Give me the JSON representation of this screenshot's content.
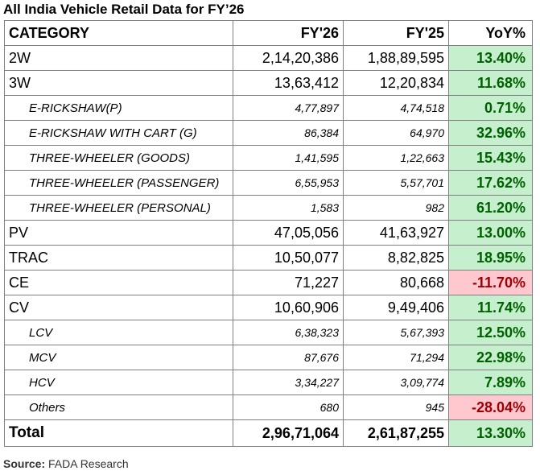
{
  "title": "All India Vehicle Retail Data for FY’26",
  "headers": {
    "category": "CATEGORY",
    "fy26": "FY'26",
    "fy25": "FY'25",
    "yoy": "YoY%"
  },
  "rows": [
    {
      "category": "2W",
      "fy26": "2,14,20,386",
      "fy25": "1,88,89,595",
      "yoy": "13.40%",
      "level": "main",
      "trend": "positive"
    },
    {
      "category": "3W",
      "fy26": "13,63,412",
      "fy25": "12,20,834",
      "yoy": "11.68%",
      "level": "main",
      "trend": "positive"
    },
    {
      "category": "E-RICKSHAW(P)",
      "fy26": "4,77,897",
      "fy25": "4,74,518",
      "yoy": "0.71%",
      "level": "sub",
      "trend": "positive"
    },
    {
      "category": "E-RICKSHAW WITH CART (G)",
      "fy26": "86,384",
      "fy25": "64,970",
      "yoy": "32.96%",
      "level": "sub",
      "trend": "positive"
    },
    {
      "category": "THREE-WHEELER (GOODS)",
      "fy26": "1,41,595",
      "fy25": "1,22,663",
      "yoy": "15.43%",
      "level": "sub",
      "trend": "positive"
    },
    {
      "category": "THREE-WHEELER (PASSENGER)",
      "fy26": "6,55,953",
      "fy25": "5,57,701",
      "yoy": "17.62%",
      "level": "sub",
      "trend": "positive"
    },
    {
      "category": "THREE-WHEELER (PERSONAL)",
      "fy26": "1,583",
      "fy25": "982",
      "yoy": "61.20%",
      "level": "sub",
      "trend": "positive"
    },
    {
      "category": "PV",
      "fy26": "47,05,056",
      "fy25": "41,63,927",
      "yoy": "13.00%",
      "level": "main",
      "trend": "positive"
    },
    {
      "category": "TRAC",
      "fy26": "10,50,077",
      "fy25": "8,82,825",
      "yoy": "18.95%",
      "level": "main",
      "trend": "positive"
    },
    {
      "category": "CE",
      "fy26": "71,227",
      "fy25": "80,668",
      "yoy": "-11.70%",
      "level": "main",
      "trend": "negative"
    },
    {
      "category": "CV",
      "fy26": "10,60,906",
      "fy25": "9,49,406",
      "yoy": "11.74%",
      "level": "main",
      "trend": "positive"
    },
    {
      "category": "LCV",
      "fy26": "6,38,323",
      "fy25": "5,67,393",
      "yoy": "12.50%",
      "level": "sub",
      "trend": "positive"
    },
    {
      "category": "MCV",
      "fy26": "87,676",
      "fy25": "71,294",
      "yoy": "22.98%",
      "level": "sub",
      "trend": "positive"
    },
    {
      "category": "HCV",
      "fy26": "3,34,227",
      "fy25": "3,09,774",
      "yoy": "7.89%",
      "level": "sub",
      "trend": "positive"
    },
    {
      "category": "Others",
      "fy26": "680",
      "fy25": "945",
      "yoy": "-28.04%",
      "level": "sub",
      "trend": "negative"
    }
  ],
  "total": {
    "category": "Total",
    "fy26": "2,96,71,064",
    "fy25": "2,61,87,255",
    "yoy": "13.30%",
    "trend": "positive"
  },
  "source": {
    "label": "Source:",
    "text": "FADA Research"
  },
  "colors": {
    "positive_bg": "#c6efce",
    "positive_text": "#006100",
    "negative_bg": "#ffc7ce",
    "negative_text": "#9c0006",
    "border": "#7f7f7f"
  }
}
